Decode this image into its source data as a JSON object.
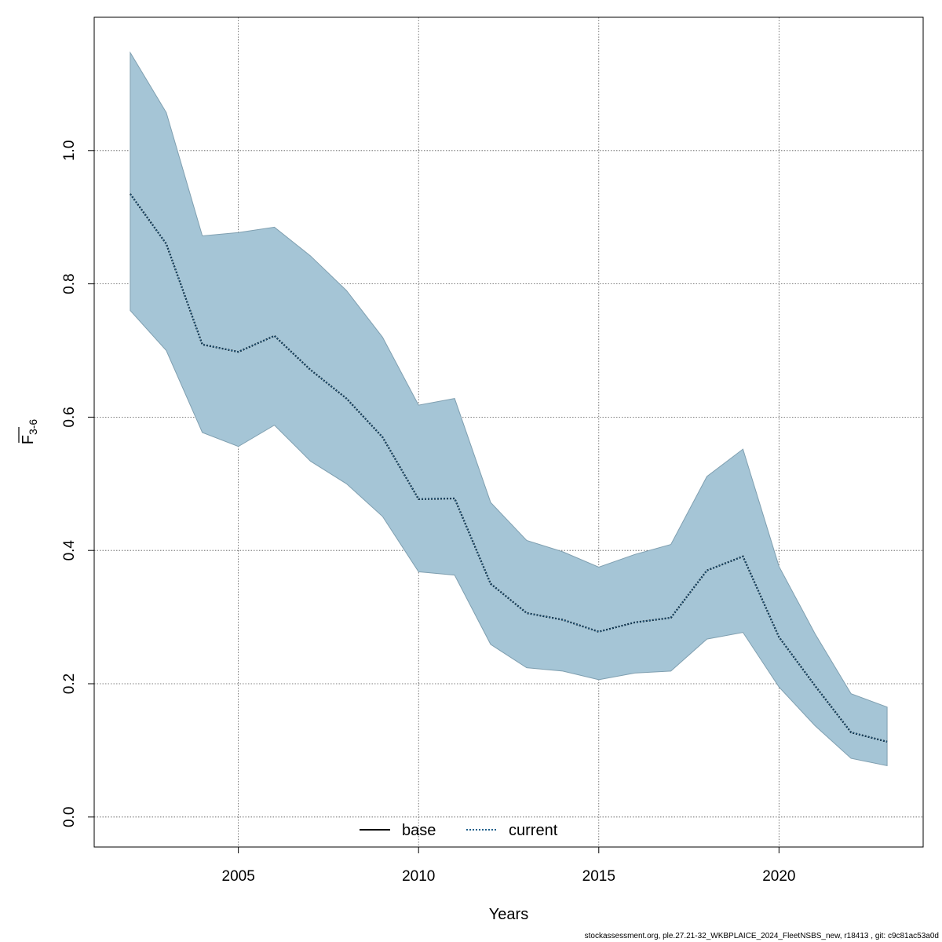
{
  "chart_data": {
    "type": "line",
    "xlabel": "Years",
    "ylabel_main": "F",
    "ylabel_sub": "3-6",
    "xlim": [
      2001.0,
      2024.0
    ],
    "ylim": [
      -0.045,
      1.2
    ],
    "xticks": [
      2005,
      2010,
      2015,
      2020
    ],
    "xtick_labels": [
      "2005",
      "2010",
      "2015",
      "2020"
    ],
    "yticks": [
      0.0,
      0.2,
      0.4,
      0.6,
      0.8,
      1.0
    ],
    "ytick_labels": [
      "0.0",
      "0.2",
      "0.4",
      "0.6",
      "0.8",
      "1.0"
    ],
    "grid": true,
    "legend_position": "bottom-center",
    "band": {
      "color": "#a5c5d6",
      "edge_color": "#7f9fb0",
      "x": [
        2002,
        2003,
        2004,
        2005,
        2006,
        2007,
        2008,
        2009,
        2010,
        2011,
        2012,
        2013,
        2014,
        2015,
        2016,
        2017,
        2018,
        2019,
        2020,
        2021,
        2022,
        2023
      ],
      "upper": [
        1.147,
        1.057,
        0.872,
        0.877,
        0.885,
        0.842,
        0.79,
        0.72,
        0.618,
        0.628,
        0.472,
        0.415,
        0.398,
        0.375,
        0.394,
        0.409,
        0.511,
        0.552,
        0.376,
        0.275,
        0.185,
        0.165
      ],
      "lower": [
        0.76,
        0.7,
        0.577,
        0.556,
        0.588,
        0.534,
        0.5,
        0.451,
        0.368,
        0.363,
        0.259,
        0.224,
        0.219,
        0.206,
        0.216,
        0.219,
        0.267,
        0.277,
        0.195,
        0.137,
        0.088,
        0.077
      ]
    },
    "series": [
      {
        "name": "base",
        "style": "solid",
        "color": "#000000",
        "x": [],
        "values": []
      },
      {
        "name": "current",
        "style": "dotted",
        "color": "#1f5f8b",
        "x": [
          2002,
          2003,
          2004,
          2005,
          2006,
          2007,
          2008,
          2009,
          2010,
          2011,
          2012,
          2013,
          2014,
          2015,
          2016,
          2017,
          2018,
          2019,
          2020,
          2021,
          2022,
          2023
        ],
        "values": [
          0.935,
          0.86,
          0.709,
          0.698,
          0.722,
          0.671,
          0.628,
          0.57,
          0.477,
          0.478,
          0.35,
          0.306,
          0.296,
          0.278,
          0.292,
          0.299,
          0.37,
          0.391,
          0.27,
          0.197,
          0.127,
          0.113
        ]
      }
    ]
  },
  "footer": "stockassessment.org, ple.27.21-32_WKBPLAICE_2024_FleetNSBS_new, r18413 , git: c9c81ac53a0d"
}
